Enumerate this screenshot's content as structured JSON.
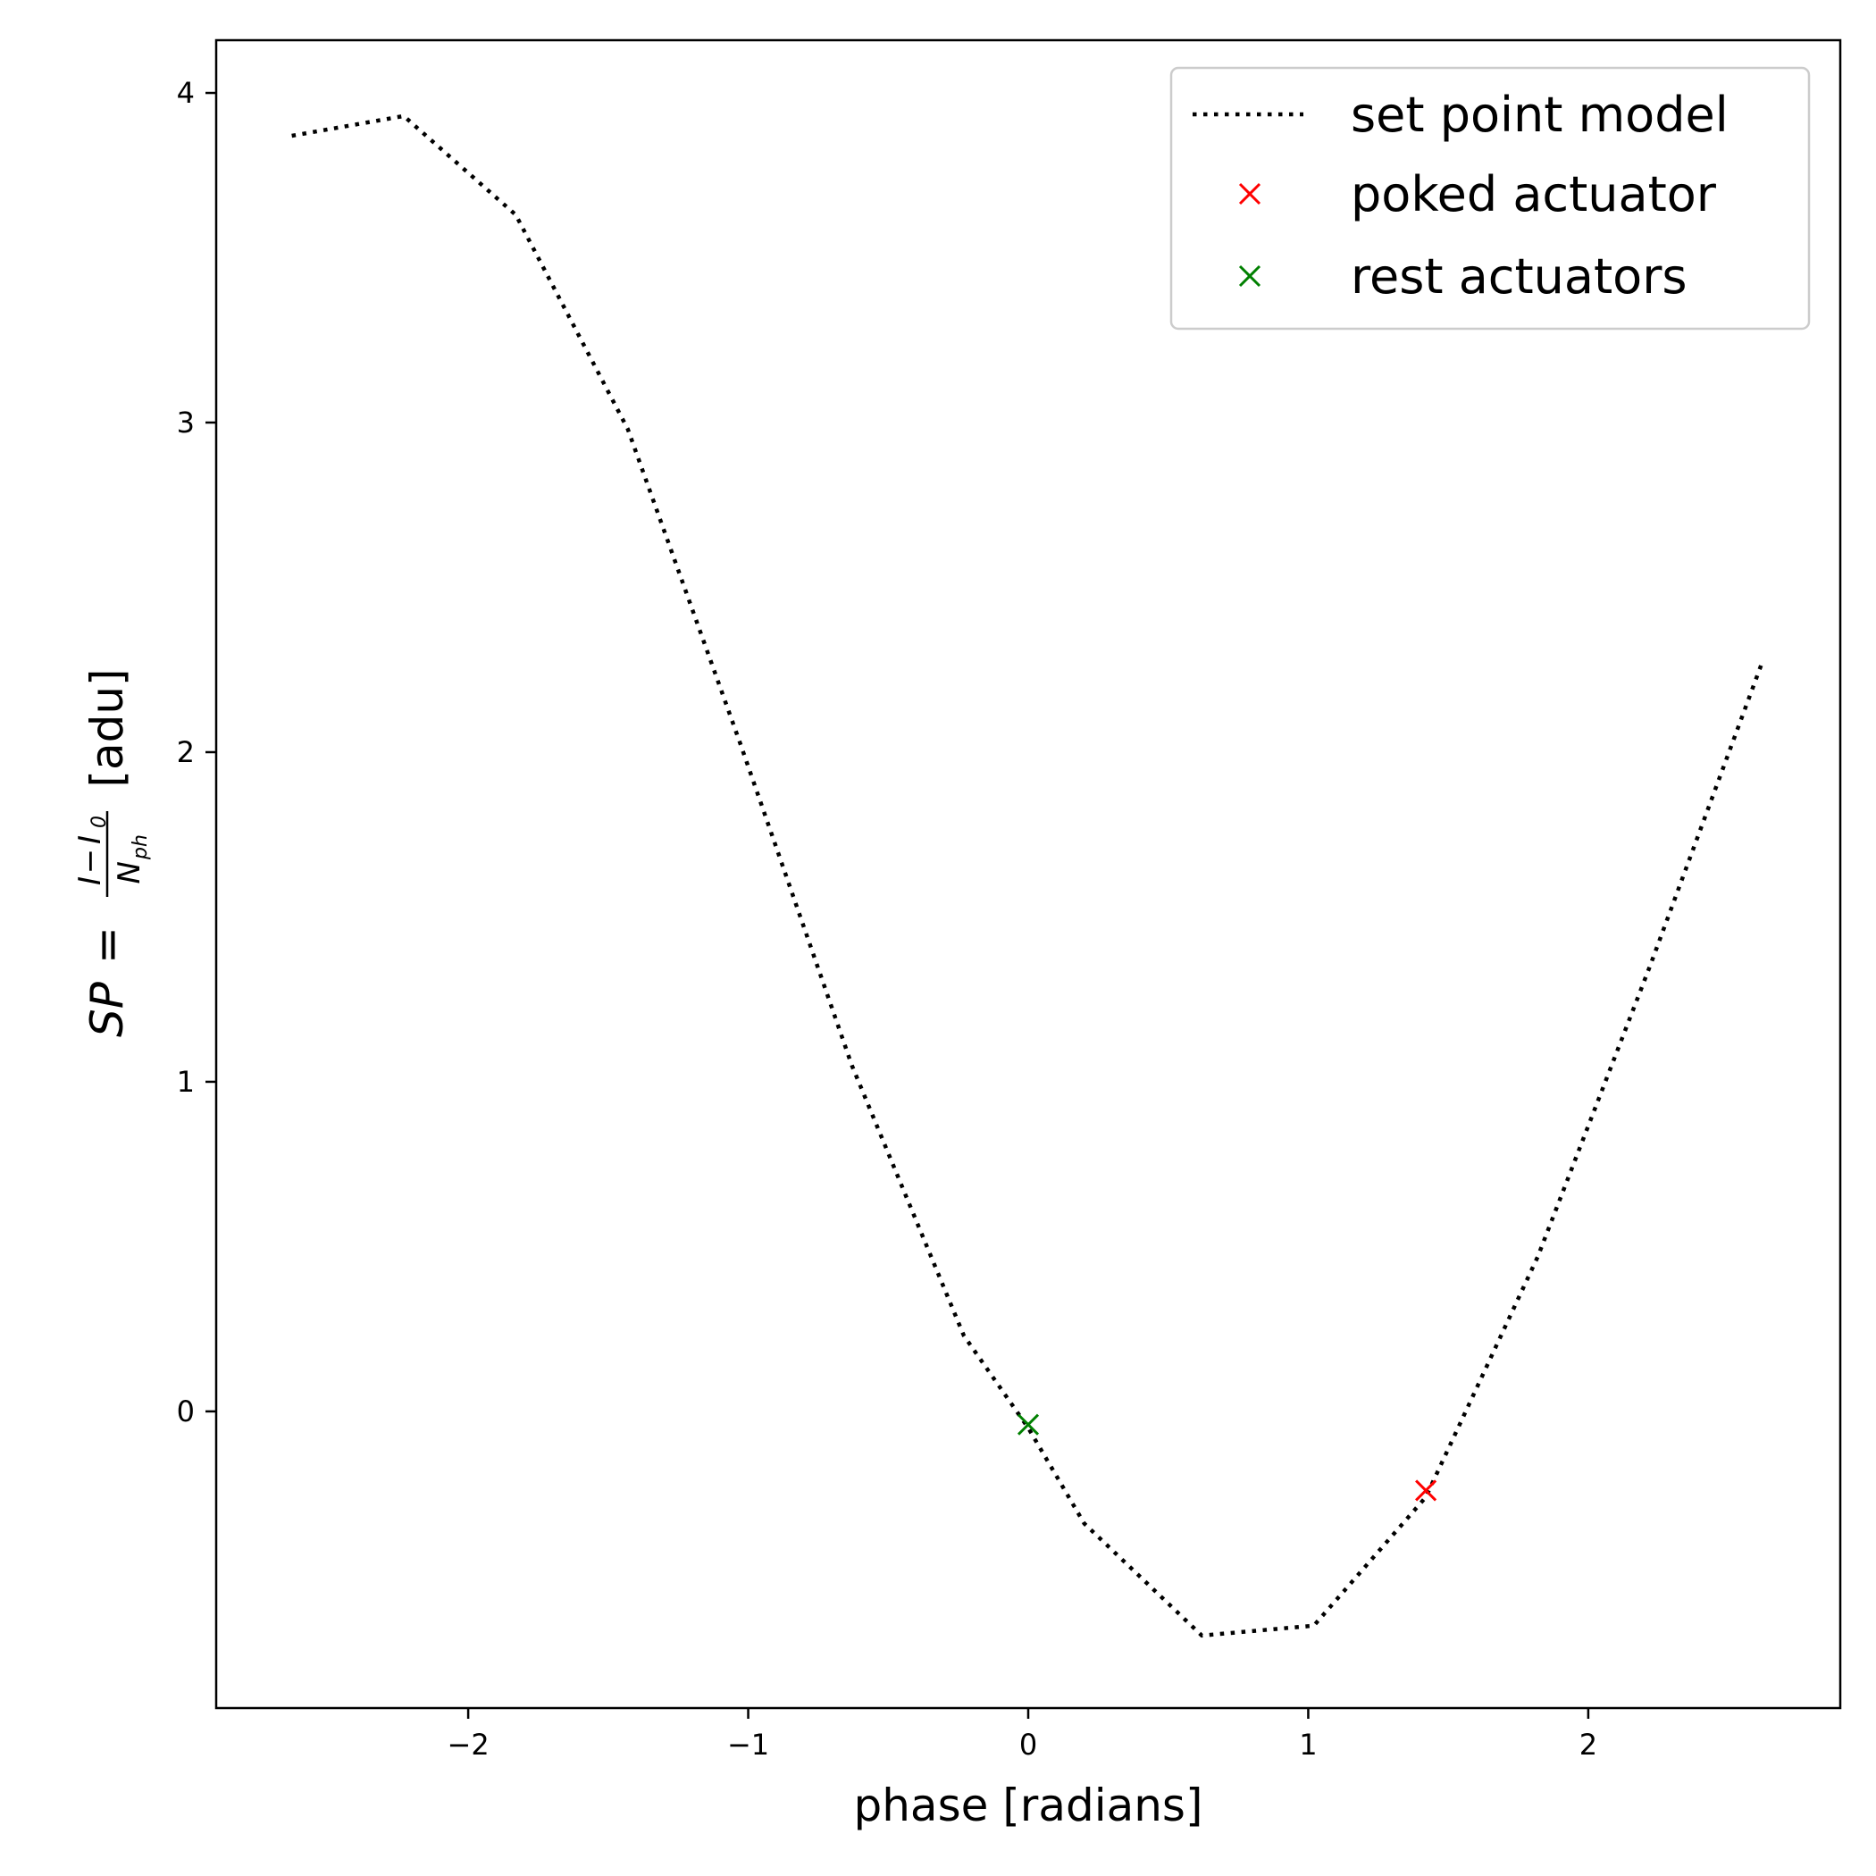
{
  "chart_data": {
    "type": "line",
    "xlabel": "phase [radians]",
    "ylabel_unit": "[adu]",
    "ylabel_math": {
      "lhs": "SP",
      "eq": "=",
      "num_a": "I",
      "num_op": "−",
      "num_b": "I",
      "num_b_sub": "0",
      "den": "N",
      "den_sub": "ph"
    },
    "xlim": [
      -2.9,
      2.9
    ],
    "ylim": [
      -0.9,
      4.16
    ],
    "xticks": [
      -2,
      -1,
      0,
      1,
      2
    ],
    "xtick_labels": [
      "−2",
      "−1",
      "0",
      "1",
      "2"
    ],
    "yticks": [
      0,
      1,
      2,
      3,
      4
    ],
    "ytick_labels": [
      "0",
      "1",
      "2",
      "3",
      "4"
    ],
    "grid": false,
    "legend_placement": "top-right",
    "series": [
      {
        "name": "set point model",
        "style": "dotted",
        "color": "#000000",
        "x": [
          -2.63,
          -2.23,
          -1.83,
          -1.43,
          -1.03,
          -0.63,
          -0.23,
          0.0,
          0.2,
          0.62,
          1.02,
          1.42,
          1.82,
          2.22,
          2.62
        ],
        "y": [
          3.87,
          3.93,
          3.63,
          2.98,
          2.03,
          1.05,
          0.23,
          -0.05,
          -0.34,
          -0.68,
          -0.65,
          -0.26,
          0.47,
          1.35,
          2.27
        ]
      },
      {
        "name": "poked actuator",
        "style": "marker-x",
        "color": "#ff0000",
        "x": [
          1.42
        ],
        "y": [
          -0.24
        ]
      },
      {
        "name": "rest actuators",
        "style": "marker-x",
        "color": "#008000",
        "x": [
          0.0
        ],
        "y": [
          -0.04
        ]
      }
    ]
  }
}
